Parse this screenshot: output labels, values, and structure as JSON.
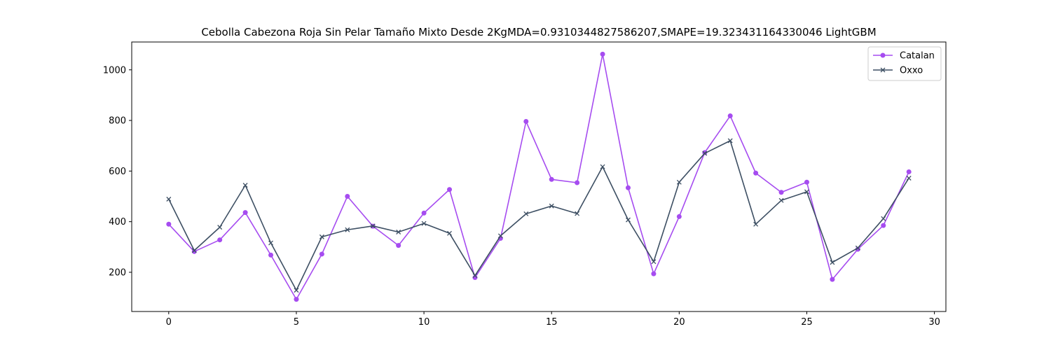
{
  "chart_data": {
    "type": "line",
    "title": "Cebolla Cabezona Roja Sin Pelar Tamaño Mixto Desde 2KgMDA=0.9310344827586207,SMAPE=19.323431164330046 LightGBM",
    "xlabel": "",
    "ylabel": "",
    "xlim": [
      -1.45,
      30.45
    ],
    "ylim": [
      45,
      1110
    ],
    "xticks": [
      0,
      5,
      10,
      15,
      20,
      25,
      30
    ],
    "yticks": [
      200,
      400,
      600,
      800,
      1000
    ],
    "grid": false,
    "legend_position": "top-right",
    "x": [
      0,
      1,
      2,
      3,
      4,
      5,
      6,
      7,
      8,
      9,
      10,
      11,
      12,
      13,
      14,
      15,
      16,
      17,
      18,
      19,
      20,
      21,
      22,
      23,
      24,
      25,
      26,
      27,
      28,
      29
    ],
    "series": [
      {
        "name": "Catalan",
        "color": "#a64cf0",
        "marker": "circle",
        "values": [
          390,
          282,
          328,
          436,
          268,
          93,
          272,
          500,
          382,
          306,
          434,
          527,
          179,
          334,
          796,
          567,
          554,
          1062,
          534,
          194,
          420,
          673,
          818,
          592,
          516,
          556,
          172,
          291,
          385,
          597
        ]
      },
      {
        "name": "Oxxo",
        "color": "#3d4f63",
        "marker": "x",
        "values": [
          489,
          286,
          378,
          544,
          316,
          129,
          340,
          368,
          383,
          359,
          393,
          354,
          187,
          344,
          431,
          462,
          432,
          617,
          407,
          242,
          556,
          670,
          720,
          390,
          484,
          518,
          239,
          296,
          412,
          572
        ]
      }
    ]
  }
}
